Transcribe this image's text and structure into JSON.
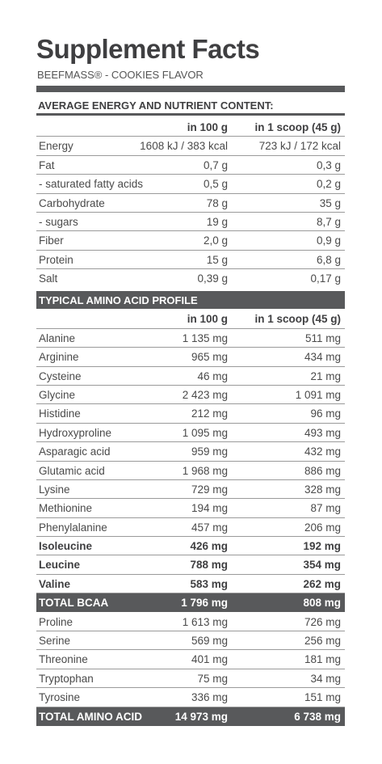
{
  "title": "Supplement Facts",
  "subtitle": "BEEFMASS® - COOKIES FLAVOR",
  "section1": {
    "heading": "AVERAGE ENERGY AND NUTRIENT CONTENT:",
    "col1": "in 100 g",
    "col2": "in 1 scoop (45 g)",
    "rows": [
      {
        "label": "Energy",
        "per100": "1608 kJ / 383 kcal",
        "perScoop": "723 kJ / 172 kcal"
      },
      {
        "label": "Fat",
        "per100": "0,7 g",
        "perScoop": "0,3 g"
      },
      {
        "label": "- saturated fatty acids",
        "per100": "0,5 g",
        "perScoop": "0,2 g"
      },
      {
        "label": "Carbohydrate",
        "per100": "78 g",
        "perScoop": "35 g"
      },
      {
        "label": "- sugars",
        "per100": "19 g",
        "perScoop": "8,7 g"
      },
      {
        "label": "Fiber",
        "per100": "2,0 g",
        "perScoop": "0,9 g"
      },
      {
        "label": "Protein",
        "per100": "15 g",
        "perScoop": "6,8 g"
      },
      {
        "label": "Salt",
        "per100": "0,39 g",
        "perScoop": "0,17 g"
      }
    ]
  },
  "section2": {
    "heading": "TYPICAL AMINO ACID PROFILE",
    "col1": "in 100 g",
    "col2": "in 1 scoop (45 g)",
    "rows": [
      {
        "label": "Alanine",
        "per100": "1 135 mg",
        "perScoop": "511 mg",
        "style": "normal"
      },
      {
        "label": "Arginine",
        "per100": "965 mg",
        "perScoop": "434 mg",
        "style": "normal"
      },
      {
        "label": "Cysteine",
        "per100": "46 mg",
        "perScoop": "21 mg",
        "style": "normal"
      },
      {
        "label": "Glycine",
        "per100": "2 423 mg",
        "perScoop": "1 091 mg",
        "style": "normal"
      },
      {
        "label": "Histidine",
        "per100": "212 mg",
        "perScoop": "96 mg",
        "style": "normal"
      },
      {
        "label": "Hydroxyproline",
        "per100": "1 095 mg",
        "perScoop": "493 mg",
        "style": "normal"
      },
      {
        "label": "Asparagic acid",
        "per100": "959 mg",
        "perScoop": "432 mg",
        "style": "normal"
      },
      {
        "label": "Glutamic acid",
        "per100": "1 968 mg",
        "perScoop": "886 mg",
        "style": "normal"
      },
      {
        "label": "Lysine",
        "per100": "729 mg",
        "perScoop": "328 mg",
        "style": "normal"
      },
      {
        "label": "Methionine",
        "per100": "194 mg",
        "perScoop": "87 mg",
        "style": "normal"
      },
      {
        "label": "Phenylalanine",
        "per100": "457 mg",
        "perScoop": "206 mg",
        "style": "normal"
      },
      {
        "label": "Isoleucine",
        "per100": "426 mg",
        "perScoop": "192 mg",
        "style": "bold"
      },
      {
        "label": "Leucine",
        "per100": "788 mg",
        "perScoop": "354 mg",
        "style": "bold"
      },
      {
        "label": "Valine",
        "per100": "583 mg",
        "perScoop": "262 mg",
        "style": "bold"
      },
      {
        "label": "TOTAL BCAA",
        "per100": "1 796 mg",
        "perScoop": "808 mg",
        "style": "dark"
      },
      {
        "label": "Proline",
        "per100": "1 613 mg",
        "perScoop": "726 mg",
        "style": "normal"
      },
      {
        "label": "Serine",
        "per100": "569 mg",
        "perScoop": "256 mg",
        "style": "normal"
      },
      {
        "label": "Threonine",
        "per100": "401 mg",
        "perScoop": "181 mg",
        "style": "normal"
      },
      {
        "label": "Tryptophan",
        "per100": "75 mg",
        "perScoop": "34 mg",
        "style": "normal"
      },
      {
        "label": "Tyrosine",
        "per100": "336 mg",
        "perScoop": "151 mg",
        "style": "normal"
      },
      {
        "label": "TOTAL AMINO ACID",
        "per100": "14 973 mg",
        "perScoop": "6 738 mg",
        "style": "dark"
      }
    ]
  }
}
